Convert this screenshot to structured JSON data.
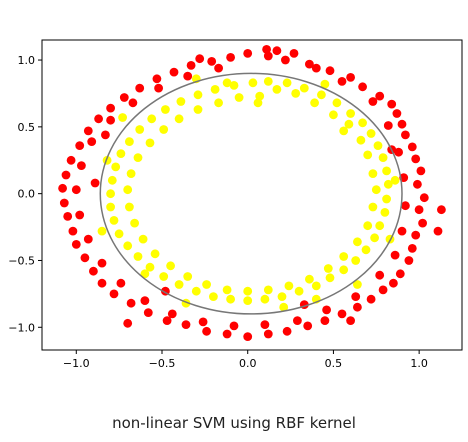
{
  "caption": "non-linear SVM using RBF kernel",
  "colors": {
    "outer_class": "#ff0000",
    "inner_class": "#ffff00",
    "boundary": "#777777",
    "axes": "#000000"
  },
  "chart_data": {
    "type": "scatter",
    "title": "",
    "xlabel": "",
    "ylabel": "",
    "xlim": [
      -1.2,
      1.25
    ],
    "ylim": [
      -1.17,
      1.15
    ],
    "xticks": [
      -1.0,
      -0.5,
      0.0,
      0.5,
      1.0
    ],
    "yticks": [
      -1.0,
      -0.5,
      0.0,
      0.5,
      1.0
    ],
    "xtick_labels": [
      "−1.0",
      "−0.5",
      "0.0",
      "0.5",
      "1.0"
    ],
    "ytick_labels": [
      "−1.0",
      "−0.5",
      "0.0",
      "0.5",
      "1.0"
    ],
    "grid": false,
    "legend": "none",
    "decision_boundary": {
      "shape": "ellipse",
      "center": [
        0.02,
        0.0
      ],
      "radius_x": 0.88,
      "radius_y": 0.9
    },
    "series": [
      {
        "color": "#ff0000",
        "points": [
          [
            0.11,
            1.08
          ],
          [
            0.27,
            1.05
          ],
          [
            0.36,
            0.97
          ],
          [
            0.48,
            0.92
          ],
          [
            0.6,
            0.87
          ],
          [
            0.67,
            0.8
          ],
          [
            0.77,
            0.73
          ],
          [
            0.84,
            0.67
          ],
          [
            0.87,
            0.6
          ],
          [
            0.9,
            0.52
          ],
          [
            0.92,
            0.44
          ],
          [
            0.96,
            0.35
          ],
          [
            0.98,
            0.26
          ],
          [
            1.01,
            0.17
          ],
          [
            0.99,
            0.07
          ],
          [
            1.03,
            -0.03
          ],
          [
            1.0,
            -0.12
          ],
          [
            1.02,
            -0.22
          ],
          [
            0.98,
            -0.31
          ],
          [
            0.96,
            -0.41
          ],
          [
            0.94,
            -0.5
          ],
          [
            0.89,
            -0.6
          ],
          [
            0.85,
            -0.67
          ],
          [
            0.79,
            -0.72
          ],
          [
            0.72,
            -0.79
          ],
          [
            0.64,
            -0.85
          ],
          [
            0.55,
            -0.9
          ],
          [
            0.45,
            -0.95
          ],
          [
            0.35,
            -0.99
          ],
          [
            0.23,
            -1.03
          ],
          [
            0.12,
            -1.05
          ],
          [
            0.0,
            -1.07
          ],
          [
            -0.12,
            -1.05
          ],
          [
            -0.24,
            -1.03
          ],
          [
            -0.36,
            -0.98
          ],
          [
            -0.47,
            -0.95
          ],
          [
            -0.58,
            -0.89
          ],
          [
            -0.68,
            -0.82
          ],
          [
            -0.78,
            -0.75
          ],
          [
            -0.85,
            -0.67
          ],
          [
            -0.9,
            -0.58
          ],
          [
            -0.95,
            -0.48
          ],
          [
            -1.0,
            -0.38
          ],
          [
            -1.02,
            -0.28
          ],
          [
            -1.05,
            -0.17
          ],
          [
            -1.07,
            -0.07
          ],
          [
            -1.08,
            0.04
          ],
          [
            -1.06,
            0.14
          ],
          [
            -1.03,
            0.25
          ],
          [
            -0.98,
            0.36
          ],
          [
            -0.93,
            0.47
          ],
          [
            -0.87,
            0.56
          ],
          [
            -0.8,
            0.64
          ],
          [
            -0.72,
            0.72
          ],
          [
            -0.63,
            0.79
          ],
          [
            -0.53,
            0.86
          ],
          [
            -0.43,
            0.91
          ],
          [
            -0.33,
            0.96
          ],
          [
            -0.21,
            0.99
          ],
          [
            -0.1,
            1.02
          ],
          [
            0.0,
            1.05
          ],
          [
            0.12,
            1.03
          ],
          [
            0.22,
            1.0
          ],
          [
            0.4,
            0.94
          ],
          [
            0.55,
            0.84
          ],
          [
            0.73,
            0.69
          ],
          [
            0.82,
            0.51
          ],
          [
            0.88,
            0.31
          ],
          [
            0.91,
            0.12
          ],
          [
            0.92,
            -0.09
          ],
          [
            0.9,
            -0.28
          ],
          [
            0.86,
            -0.46
          ],
          [
            0.77,
            -0.61
          ],
          [
            0.63,
            -0.77
          ],
          [
            0.46,
            -0.87
          ],
          [
            0.29,
            -0.95
          ],
          [
            0.1,
            -0.98
          ],
          [
            -0.08,
            -0.99
          ],
          [
            -0.26,
            -0.96
          ],
          [
            -0.44,
            -0.9
          ],
          [
            -0.6,
            -0.8
          ],
          [
            -0.74,
            -0.67
          ],
          [
            -0.85,
            -0.52
          ],
          [
            -0.93,
            -0.34
          ],
          [
            -0.98,
            -0.16
          ],
          [
            -1.0,
            0.03
          ],
          [
            -0.97,
            0.21
          ],
          [
            -0.91,
            0.39
          ],
          [
            -0.8,
            0.55
          ],
          [
            -0.67,
            0.68
          ],
          [
            -0.52,
            0.79
          ],
          [
            -0.35,
            0.88
          ],
          [
            -0.17,
            0.94
          ],
          [
            0.17,
            1.07
          ],
          [
            -0.28,
            1.01
          ],
          [
            0.84,
            0.33
          ],
          [
            -0.89,
            0.08
          ],
          [
            0.6,
            -0.95
          ],
          [
            -0.7,
            -0.97
          ],
          [
            1.11,
            -0.28
          ],
          [
            1.13,
            -0.12
          ],
          [
            0.33,
            -0.83
          ],
          [
            -0.48,
            -0.73
          ],
          [
            -0.83,
            0.44
          ]
        ]
      },
      {
        "color": "#ffff00",
        "points": [
          [
            0.12,
            0.84
          ],
          [
            0.23,
            0.83
          ],
          [
            0.33,
            0.79
          ],
          [
            0.43,
            0.74
          ],
          [
            0.52,
            0.68
          ],
          [
            0.6,
            0.6
          ],
          [
            0.67,
            0.53
          ],
          [
            0.72,
            0.45
          ],
          [
            0.76,
            0.36
          ],
          [
            0.79,
            0.27
          ],
          [
            0.81,
            0.17
          ],
          [
            0.82,
            0.07
          ],
          [
            0.81,
            -0.04
          ],
          [
            0.8,
            -0.14
          ],
          [
            0.77,
            -0.24
          ],
          [
            0.74,
            -0.33
          ],
          [
            0.69,
            -0.42
          ],
          [
            0.63,
            -0.5
          ],
          [
            0.56,
            -0.57
          ],
          [
            0.48,
            -0.63
          ],
          [
            0.4,
            -0.69
          ],
          [
            0.3,
            -0.73
          ],
          [
            0.2,
            -0.77
          ],
          [
            0.1,
            -0.79
          ],
          [
            0.0,
            -0.8
          ],
          [
            -0.1,
            -0.79
          ],
          [
            -0.2,
            -0.77
          ],
          [
            -0.3,
            -0.73
          ],
          [
            -0.4,
            -0.68
          ],
          [
            -0.49,
            -0.62
          ],
          [
            -0.57,
            -0.55
          ],
          [
            -0.64,
            -0.47
          ],
          [
            -0.7,
            -0.39
          ],
          [
            -0.75,
            -0.3
          ],
          [
            -0.78,
            -0.2
          ],
          [
            -0.8,
            -0.1
          ],
          [
            -0.8,
            0.0
          ],
          [
            -0.79,
            0.1
          ],
          [
            -0.77,
            0.2
          ],
          [
            -0.74,
            0.3
          ],
          [
            -0.69,
            0.39
          ],
          [
            -0.63,
            0.48
          ],
          [
            -0.56,
            0.56
          ],
          [
            -0.48,
            0.63
          ],
          [
            -0.39,
            0.69
          ],
          [
            -0.29,
            0.74
          ],
          [
            -0.19,
            0.78
          ],
          [
            -0.08,
            0.81
          ],
          [
            0.03,
            0.83
          ],
          [
            0.17,
            0.78
          ],
          [
            0.28,
            0.75
          ],
          [
            0.39,
            0.68
          ],
          [
            0.5,
            0.59
          ],
          [
            0.59,
            0.52
          ],
          [
            0.66,
            0.4
          ],
          [
            0.7,
            0.29
          ],
          [
            0.73,
            0.15
          ],
          [
            0.75,
            0.03
          ],
          [
            0.73,
            -0.1
          ],
          [
            0.7,
            -0.24
          ],
          [
            0.64,
            -0.36
          ],
          [
            0.56,
            -0.47
          ],
          [
            0.47,
            -0.56
          ],
          [
            0.36,
            -0.64
          ],
          [
            0.24,
            -0.69
          ],
          [
            0.12,
            -0.72
          ],
          [
            0.0,
            -0.73
          ],
          [
            -0.12,
            -0.72
          ],
          [
            -0.24,
            -0.68
          ],
          [
            -0.35,
            -0.62
          ],
          [
            -0.45,
            -0.54
          ],
          [
            -0.54,
            -0.45
          ],
          [
            -0.61,
            -0.34
          ],
          [
            -0.66,
            -0.22
          ],
          [
            -0.69,
            -0.1
          ],
          [
            -0.7,
            0.03
          ],
          [
            -0.68,
            0.15
          ],
          [
            -0.64,
            0.27
          ],
          [
            -0.57,
            0.38
          ],
          [
            -0.49,
            0.48
          ],
          [
            -0.4,
            0.56
          ],
          [
            -0.29,
            0.63
          ],
          [
            -0.17,
            0.68
          ],
          [
            -0.05,
            0.72
          ],
          [
            0.07,
            0.73
          ],
          [
            -0.12,
            0.83
          ],
          [
            0.45,
            0.82
          ],
          [
            0.56,
            0.47
          ],
          [
            0.86,
            0.1
          ],
          [
            -0.85,
            -0.28
          ],
          [
            0.21,
            -0.85
          ],
          [
            -0.36,
            -0.82
          ],
          [
            -0.73,
            0.57
          ],
          [
            0.64,
            -0.68
          ],
          [
            0.06,
            0.68
          ],
          [
            -0.6,
            -0.6
          ],
          [
            0.83,
            -0.34
          ],
          [
            -0.3,
            0.86
          ],
          [
            0.4,
            -0.79
          ],
          [
            -0.82,
            0.25
          ]
        ]
      }
    ]
  }
}
